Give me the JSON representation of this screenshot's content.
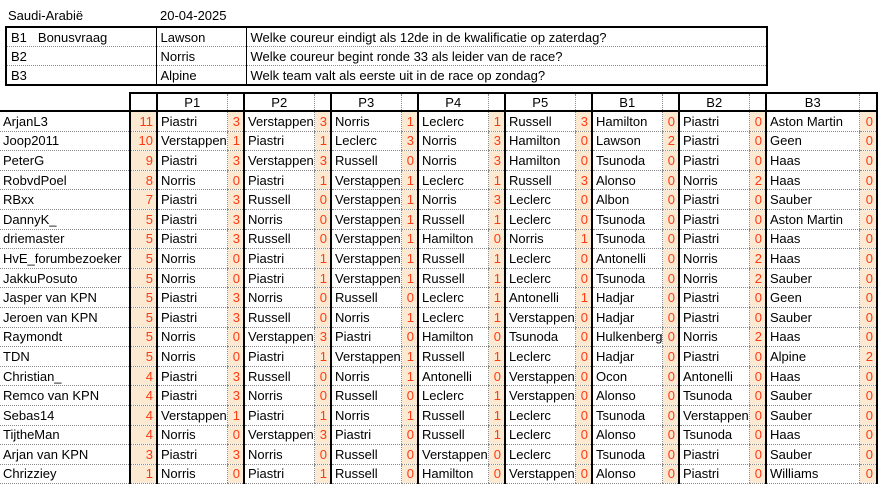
{
  "page": {
    "title": "Saudi-Arabië",
    "date": "20-04-2025"
  },
  "bonus": {
    "rows": [
      {
        "code": "B1",
        "note": "Bonusvraag",
        "answer": "Lawson",
        "question": "Welke coureur eindigt als 12de in de kwalificatie op zaterdag?"
      },
      {
        "code": "B2",
        "note": "",
        "answer": "Norris",
        "question": "Welke coureur begint ronde 33 als leider van de race?"
      },
      {
        "code": "B3",
        "note": "",
        "answer": "Alpine",
        "question": "Welk team valt als eerste uit in de race op zondag?"
      }
    ]
  },
  "standings": {
    "columns": [
      "P1",
      "P2",
      "P3",
      "P4",
      "P5",
      "B1",
      "B2",
      "B3"
    ],
    "rows": [
      {
        "player": "ArjanL3",
        "total": 11,
        "picks": [
          [
            "Piastri",
            3
          ],
          [
            "Verstappen",
            3
          ],
          [
            "Norris",
            1
          ],
          [
            "Leclerc",
            1
          ],
          [
            "Russell",
            3
          ],
          [
            "Hamilton",
            0
          ],
          [
            "Piastri",
            0
          ],
          [
            "Aston Martin",
            0
          ]
        ]
      },
      {
        "player": "Joop2011",
        "total": 10,
        "picks": [
          [
            "Verstappen",
            1
          ],
          [
            "Piastri",
            1
          ],
          [
            "Leclerc",
            3
          ],
          [
            "Norris",
            3
          ],
          [
            "Hamilton",
            0
          ],
          [
            "Lawson",
            2
          ],
          [
            "Piastri",
            0
          ],
          [
            "Geen",
            0
          ]
        ]
      },
      {
        "player": "PeterG",
        "total": 9,
        "picks": [
          [
            "Piastri",
            3
          ],
          [
            "Verstappen",
            3
          ],
          [
            "Russell",
            0
          ],
          [
            "Norris",
            3
          ],
          [
            "Hamilton",
            0
          ],
          [
            "Tsunoda",
            0
          ],
          [
            "Piastri",
            0
          ],
          [
            "Haas",
            0
          ]
        ]
      },
      {
        "player": "RobvdPoel",
        "total": 8,
        "picks": [
          [
            "Norris",
            0
          ],
          [
            "Piastri",
            1
          ],
          [
            "Verstappen",
            1
          ],
          [
            "Leclerc",
            1
          ],
          [
            "Russell",
            3
          ],
          [
            "Alonso",
            0
          ],
          [
            "Norris",
            2
          ],
          [
            "Haas",
            0
          ]
        ]
      },
      {
        "player": "RBxx",
        "total": 7,
        "picks": [
          [
            "Piastri",
            3
          ],
          [
            "Russell",
            0
          ],
          [
            "Verstappen",
            1
          ],
          [
            "Norris",
            3
          ],
          [
            "Leclerc",
            0
          ],
          [
            "Albon",
            0
          ],
          [
            "Piastri",
            0
          ],
          [
            "Sauber",
            0
          ]
        ]
      },
      {
        "player": "DannyK_",
        "total": 5,
        "picks": [
          [
            "Piastri",
            3
          ],
          [
            "Norris",
            0
          ],
          [
            "Verstappen",
            1
          ],
          [
            "Russell",
            1
          ],
          [
            "Leclerc",
            0
          ],
          [
            "Tsunoda",
            0
          ],
          [
            "Piastri",
            0
          ],
          [
            "Aston Martin",
            0
          ]
        ]
      },
      {
        "player": "driemaster",
        "total": 5,
        "picks": [
          [
            "Piastri",
            3
          ],
          [
            "Russell",
            0
          ],
          [
            "Verstappen",
            1
          ],
          [
            "Hamilton",
            0
          ],
          [
            "Norris",
            1
          ],
          [
            "Tsunoda",
            0
          ],
          [
            "Piastri",
            0
          ],
          [
            "Haas",
            0
          ]
        ]
      },
      {
        "player": "HvE_forumbezoeker",
        "total": 5,
        "picks": [
          [
            "Norris",
            0
          ],
          [
            "Piastri",
            1
          ],
          [
            "Verstappen",
            1
          ],
          [
            "Russell",
            1
          ],
          [
            "Leclerc",
            0
          ],
          [
            "Antonelli",
            0
          ],
          [
            "Norris",
            2
          ],
          [
            "Haas",
            0
          ]
        ]
      },
      {
        "player": "JakkuPosuto",
        "total": 5,
        "picks": [
          [
            "Norris",
            0
          ],
          [
            "Piastri",
            1
          ],
          [
            "Verstappen",
            1
          ],
          [
            "Russell",
            1
          ],
          [
            "Leclerc",
            0
          ],
          [
            "Tsunoda",
            0
          ],
          [
            "Norris",
            2
          ],
          [
            "Sauber",
            0
          ]
        ]
      },
      {
        "player": "Jasper van KPN",
        "total": 5,
        "picks": [
          [
            "Piastri",
            3
          ],
          [
            "Norris",
            0
          ],
          [
            "Russell",
            0
          ],
          [
            "Leclerc",
            1
          ],
          [
            "Antonelli",
            1
          ],
          [
            "Hadjar",
            0
          ],
          [
            "Piastri",
            0
          ],
          [
            "Geen",
            0
          ]
        ]
      },
      {
        "player": "Jeroen van KPN",
        "total": 5,
        "picks": [
          [
            "Piastri",
            3
          ],
          [
            "Russell",
            0
          ],
          [
            "Norris",
            1
          ],
          [
            "Leclerc",
            1
          ],
          [
            "Verstappen",
            0
          ],
          [
            "Hadjar",
            0
          ],
          [
            "Piastri",
            0
          ],
          [
            "Sauber",
            0
          ]
        ]
      },
      {
        "player": "Raymondt",
        "total": 5,
        "picks": [
          [
            "Norris",
            0
          ],
          [
            "Verstappen",
            3
          ],
          [
            "Piastri",
            0
          ],
          [
            "Hamilton",
            0
          ],
          [
            "Tsunoda",
            0
          ],
          [
            "Hulkenberg",
            0
          ],
          [
            "Norris",
            2
          ],
          [
            "Haas",
            0
          ]
        ]
      },
      {
        "player": "TDN",
        "total": 5,
        "picks": [
          [
            "Norris",
            0
          ],
          [
            "Piastri",
            1
          ],
          [
            "Verstappen",
            1
          ],
          [
            "Russell",
            1
          ],
          [
            "Leclerc",
            0
          ],
          [
            "Hadjar",
            0
          ],
          [
            "Piastri",
            0
          ],
          [
            "Alpine",
            2
          ]
        ]
      },
      {
        "player": "Christian_",
        "total": 4,
        "picks": [
          [
            "Piastri",
            3
          ],
          [
            "Russell",
            0
          ],
          [
            "Norris",
            1
          ],
          [
            "Antonelli",
            0
          ],
          [
            "Verstappen",
            0
          ],
          [
            "Ocon",
            0
          ],
          [
            "Antonelli",
            0
          ],
          [
            "Haas",
            0
          ]
        ]
      },
      {
        "player": "Remco van KPN",
        "total": 4,
        "picks": [
          [
            "Piastri",
            3
          ],
          [
            "Norris",
            0
          ],
          [
            "Russell",
            0
          ],
          [
            "Leclerc",
            1
          ],
          [
            "Verstappen",
            0
          ],
          [
            "Alonso",
            0
          ],
          [
            "Tsunoda",
            0
          ],
          [
            "Sauber",
            0
          ]
        ]
      },
      {
        "player": "Sebas14",
        "total": 4,
        "picks": [
          [
            "Verstappen",
            1
          ],
          [
            "Piastri",
            1
          ],
          [
            "Norris",
            1
          ],
          [
            "Russell",
            1
          ],
          [
            "Leclerc",
            0
          ],
          [
            "Tsunoda",
            0
          ],
          [
            "Verstappen",
            0
          ],
          [
            "Sauber",
            0
          ]
        ]
      },
      {
        "player": "TijtheMan",
        "total": 4,
        "picks": [
          [
            "Norris",
            0
          ],
          [
            "Verstappen",
            3
          ],
          [
            "Piastri",
            0
          ],
          [
            "Russell",
            1
          ],
          [
            "Leclerc",
            0
          ],
          [
            "Alonso",
            0
          ],
          [
            "Tsunoda",
            0
          ],
          [
            "Haas",
            0
          ]
        ]
      },
      {
        "player": "Arjan van KPN",
        "total": 3,
        "picks": [
          [
            "Piastri",
            3
          ],
          [
            "Norris",
            0
          ],
          [
            "Russell",
            0
          ],
          [
            "Verstappen",
            0
          ],
          [
            "Leclerc",
            0
          ],
          [
            "Tsunoda",
            0
          ],
          [
            "Piastri",
            0
          ],
          [
            "Sauber",
            0
          ]
        ]
      },
      {
        "player": "Chrizziey",
        "total": 1,
        "picks": [
          [
            "Norris",
            0
          ],
          [
            "Piastri",
            1
          ],
          [
            "Russell",
            0
          ],
          [
            "Hamilton",
            0
          ],
          [
            "Verstappen",
            0
          ],
          [
            "Alonso",
            0
          ],
          [
            "Piastri",
            0
          ],
          [
            "Williams",
            0
          ]
        ]
      }
    ]
  },
  "colors": {
    "points_bg": "#fce9d2",
    "points_text": "#ff3a12"
  }
}
